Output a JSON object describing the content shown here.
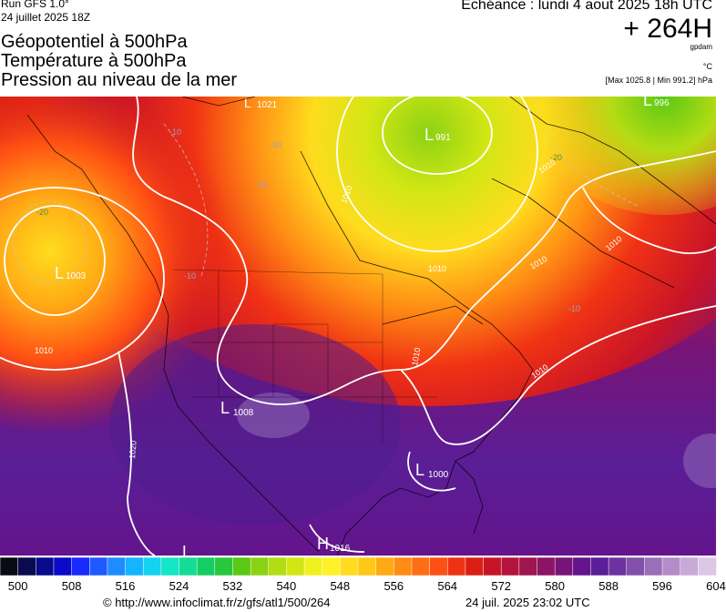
{
  "header": {
    "run": "Run GFS 1.0°",
    "run_date": "24 juillet 2025 18Z",
    "echeance": "Echéance : lundi 4 aout 2025 18h UTC",
    "lead_time": "+ 264H",
    "titles": [
      "Géopotentiel à 500hPa",
      "Température à 500hPa",
      "Pression au niveau de la mer"
    ],
    "unit_geopotential": "gpdam",
    "unit_temperature": "°C",
    "max_min": "[Max 1025.8 | Min 991.2] hPa"
  },
  "map": {
    "pressure_centers": [
      {
        "type": "L",
        "value": "1021"
      },
      {
        "type": "L",
        "value": "991"
      },
      {
        "type": "L",
        "value": "996"
      },
      {
        "type": "L",
        "value": "1003"
      },
      {
        "type": "L",
        "value": "1008"
      },
      {
        "type": "L",
        "value": "1000"
      },
      {
        "type": "H",
        "value": "1016"
      },
      {
        "type": "L",
        "value": ""
      }
    ],
    "isobar_labels": [
      "1010",
      "1010",
      "1010",
      "1010",
      "1010",
      "1010",
      "1010",
      "1010",
      "1020"
    ],
    "temperature_labels": [
      "-10",
      "-10",
      "-10",
      "-10",
      "-20",
      "-20",
      "-10"
    ]
  },
  "colorbar": {
    "colors": [
      "#0a0a14",
      "#0a0a50",
      "#0a0a8c",
      "#0a0ac8",
      "#1a2aff",
      "#1e5aff",
      "#1e8cff",
      "#14b4ff",
      "#14d2f0",
      "#14e6c8",
      "#14dc96",
      "#14cd64",
      "#28c83c",
      "#5ac814",
      "#8cd214",
      "#b4dc14",
      "#d2e614",
      "#f0f01e",
      "#fff028",
      "#ffdc1e",
      "#ffc814",
      "#ffaa14",
      "#ff8c14",
      "#ff6e14",
      "#ff5014",
      "#f03214",
      "#dc1e14",
      "#c81428",
      "#b4143c",
      "#a01450",
      "#8c1464",
      "#781478",
      "#64148c",
      "#5a1e96",
      "#6e32a0",
      "#8250aa",
      "#9a6eb9",
      "#b48cc8",
      "#c8aad7",
      "#dcc8e6"
    ],
    "labels": [
      "500",
      "508",
      "516",
      "524",
      "532",
      "540",
      "548",
      "556",
      "564",
      "572",
      "580",
      "588",
      "596",
      "604"
    ]
  },
  "footer": {
    "url": "© http://www.infoclimat.fr/z/gfs/atl1/500/264",
    "timestamp": "24 juil. 2025 23:02 UTC"
  }
}
